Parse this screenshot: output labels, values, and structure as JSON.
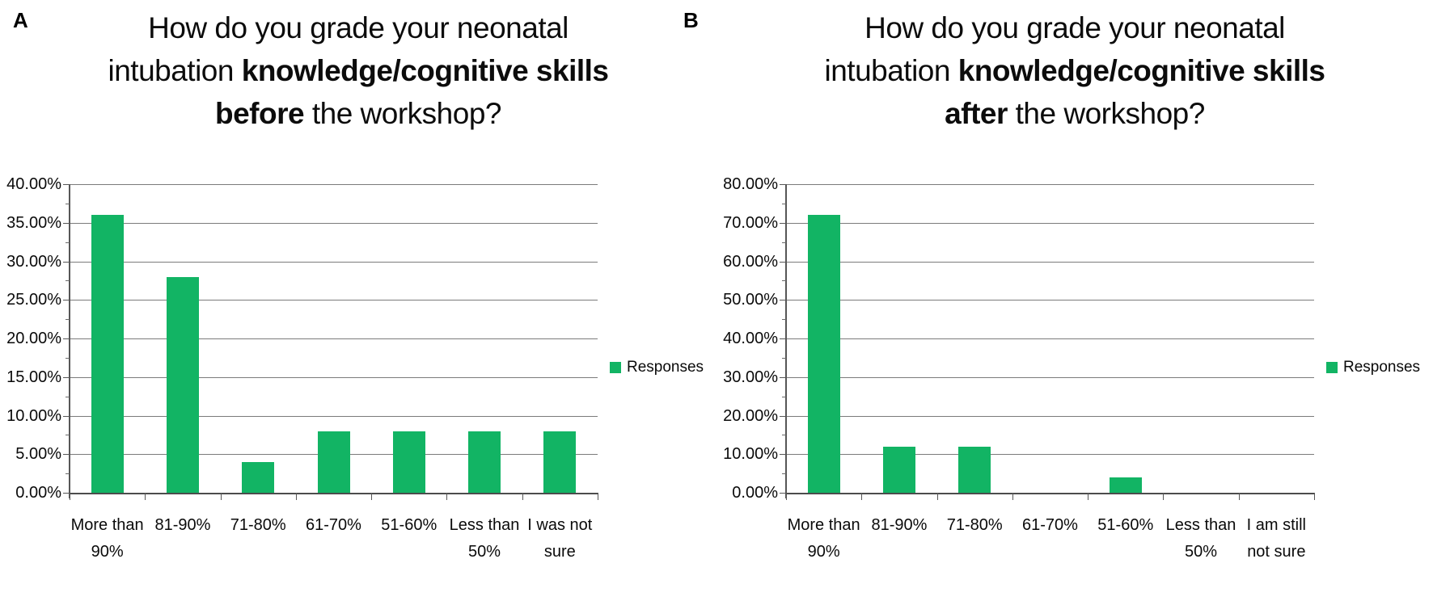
{
  "figure": {
    "panel_a_label": "A",
    "panel_b_label": "B",
    "legend_label": "Responses"
  },
  "colors": {
    "bar_green": "#12b464",
    "gridline_gray": "#7b7b7b",
    "axis_gray": "#565656",
    "text_black": "#0a0a0a"
  },
  "chart_data": [
    {
      "type": "bar",
      "panel": "A",
      "title": "How do you grade your neonatal intubation knowledge/cognitive skills before the workshop?",
      "title_lines": [
        [
          {
            "text": "How do you grade your neonatal",
            "bold": false
          }
        ],
        [
          {
            "text": "intubation ",
            "bold": false
          },
          {
            "text": "knowledge/cognitive skills",
            "bold": true
          }
        ],
        [
          {
            "text": "before",
            "bold": true
          },
          {
            "text": " the workshop?",
            "bold": false
          }
        ]
      ],
      "categories": [
        "More than 90%",
        "81-90%",
        "71-80%",
        "61-70%",
        "51-60%",
        "Less than 50%",
        "I was not sure"
      ],
      "category_label_lines": [
        [
          "More than",
          "90%"
        ],
        [
          "81-90%"
        ],
        [
          "71-80%"
        ],
        [
          "61-70%"
        ],
        [
          "51-60%"
        ],
        [
          "Less than",
          "50%"
        ],
        [
          "I was not",
          "sure"
        ]
      ],
      "values_percent": [
        36,
        28,
        4,
        8,
        8,
        8,
        8
      ],
      "ylabel": "",
      "xlabel": "",
      "ylim": [
        0,
        40
      ],
      "ytick_step": 5,
      "ytick_labels_bottom_to_top": [
        "0.00%",
        "5.00%",
        "10.00%",
        "15.00%",
        "20.00%",
        "25.00%",
        "30.00%",
        "35.00%",
        "40.00%"
      ],
      "grid": true,
      "legend": "Responses",
      "legend_position": "right-middle",
      "bar_color": "#12b464"
    },
    {
      "type": "bar",
      "panel": "B",
      "title": "How do you grade your neonatal intubation knowledge/cognitive skills after the workshop?",
      "title_lines": [
        [
          {
            "text": "How do you grade your neonatal",
            "bold": false
          }
        ],
        [
          {
            "text": "intubation ",
            "bold": false
          },
          {
            "text": "knowledge/cognitive skills",
            "bold": true
          }
        ],
        [
          {
            "text": "after",
            "bold": true
          },
          {
            "text": " the workshop?",
            "bold": false
          }
        ]
      ],
      "categories": [
        "More than 90%",
        "81-90%",
        "71-80%",
        "61-70%",
        "51-60%",
        "Less than 50%",
        "I am still not sure"
      ],
      "category_label_lines": [
        [
          "More than",
          "90%"
        ],
        [
          "81-90%"
        ],
        [
          "71-80%"
        ],
        [
          "61-70%"
        ],
        [
          "51-60%"
        ],
        [
          "Less than",
          "50%"
        ],
        [
          "I am still",
          "not sure"
        ]
      ],
      "values_percent": [
        72,
        12,
        12,
        0,
        4,
        0,
        0
      ],
      "ylabel": "",
      "xlabel": "",
      "ylim": [
        0,
        80
      ],
      "ytick_step": 10,
      "ytick_labels_bottom_to_top": [
        "0.00%",
        "10.00%",
        "20.00%",
        "30.00%",
        "40.00%",
        "50.00%",
        "60.00%",
        "70.00%",
        "80.00%"
      ],
      "grid": true,
      "legend": "Responses",
      "legend_position": "right-middle",
      "bar_color": "#12b464"
    }
  ]
}
